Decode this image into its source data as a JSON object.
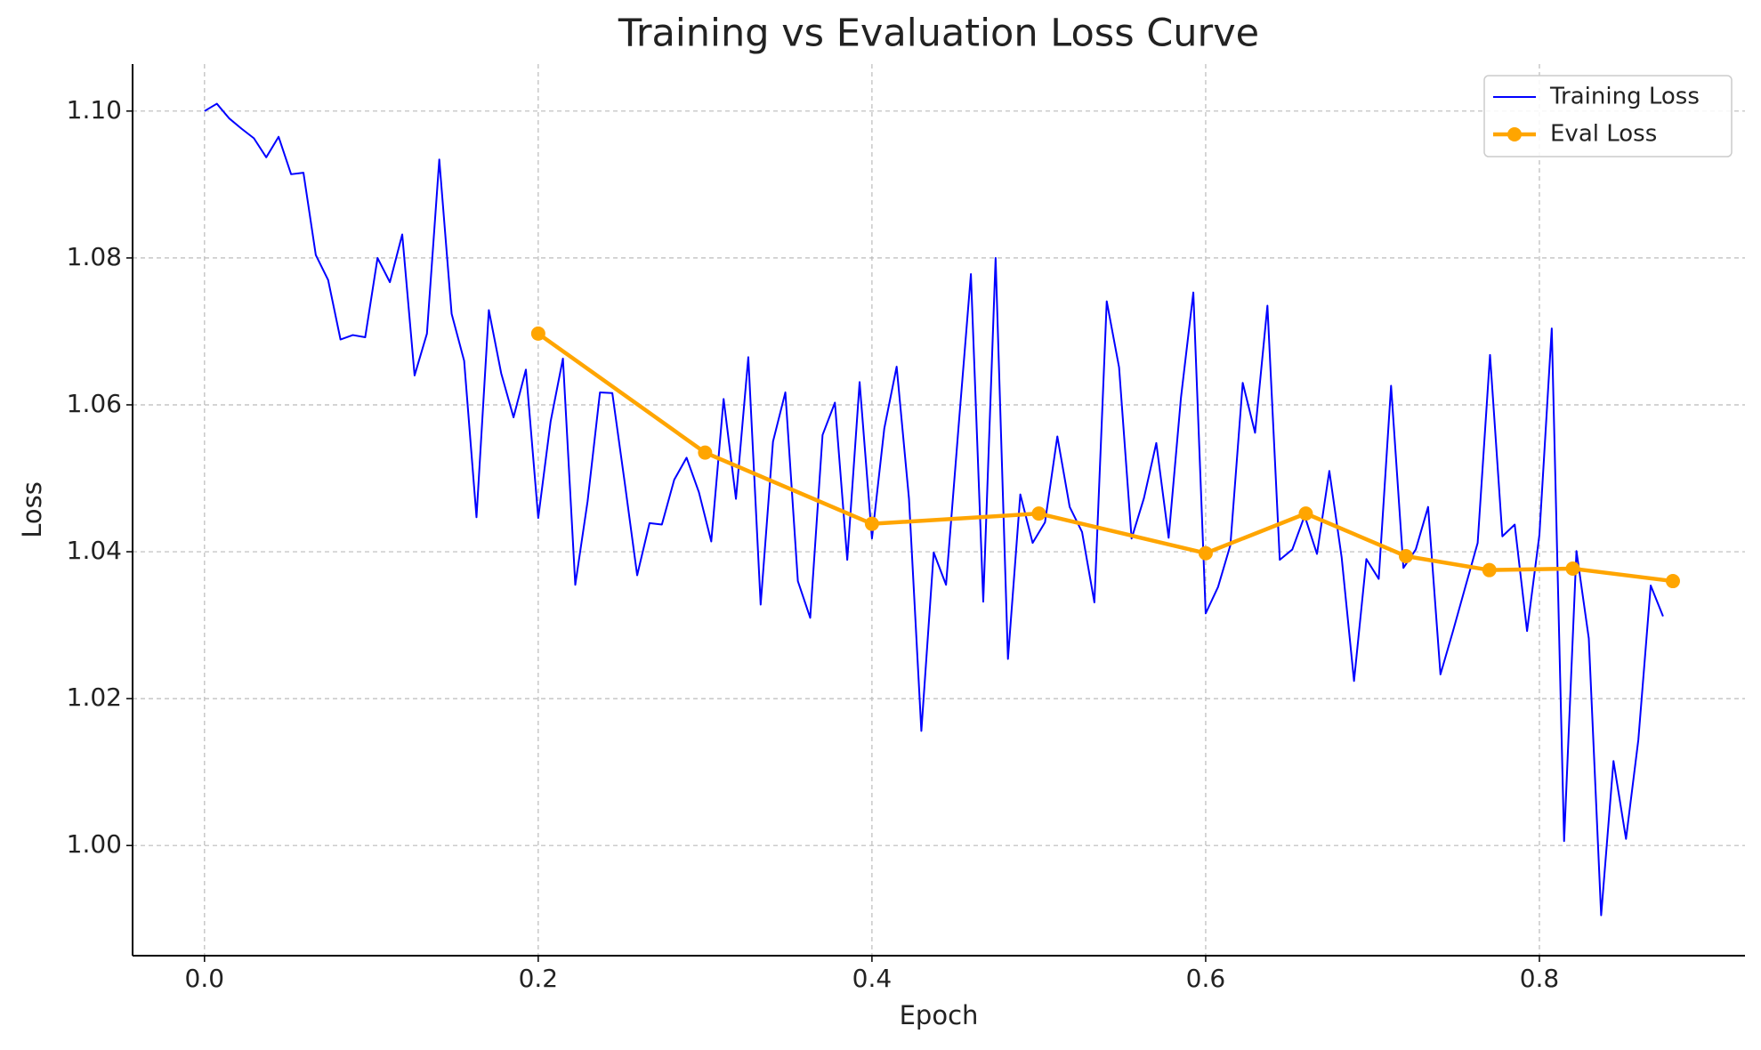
{
  "chart_data": {
    "type": "line",
    "title": "Training vs Evaluation Loss Curve",
    "x_label": "Epoch",
    "y_label": "Loss",
    "xlim": [
      -0.0431,
      0.9232
    ],
    "ylim": [
      0.985,
      1.1064
    ],
    "xticks": [
      {
        "value": 0,
        "label": "0.0"
      },
      0.2,
      0.4,
      0.6,
      0.8
    ],
    "yticks": [
      {
        "value": 1.0,
        "label": "1.00"
      },
      1.02,
      1.04,
      1.06,
      1.08,
      {
        "value": 1.1,
        "label": "1.10"
      }
    ],
    "grid": true,
    "legend": "upper right",
    "series": [
      {
        "name": "Training Loss",
        "color": "#0000ff",
        "marker": false,
        "x": [
          0,
          0.0074,
          0.0148,
          0.0222,
          0.0296,
          0.037,
          0.0444,
          0.0519,
          0.0593,
          0.0667,
          0.0741,
          0.0815,
          0.0889,
          0.0963,
          0.1037,
          0.1111,
          0.1185,
          0.1259,
          0.1333,
          0.1407,
          0.1481,
          0.1556,
          0.163,
          0.1704,
          0.1778,
          0.1852,
          0.1926,
          0.2,
          0.2074,
          0.2148,
          0.2222,
          0.2296,
          0.237,
          0.2444,
          0.2519,
          0.2593,
          0.2667,
          0.2741,
          0.2815,
          0.2889,
          0.2963,
          0.3037,
          0.3111,
          0.3185,
          0.3259,
          0.3333,
          0.3407,
          0.3481,
          0.3556,
          0.363,
          0.3704,
          0.3778,
          0.3852,
          0.3926,
          0.4,
          0.4074,
          0.4148,
          0.4222,
          0.4296,
          0.437,
          0.4444,
          0.4519,
          0.4593,
          0.4667,
          0.4741,
          0.4815,
          0.4889,
          0.4963,
          0.5037,
          0.5111,
          0.5185,
          0.5259,
          0.5333,
          0.5407,
          0.5481,
          0.5556,
          0.563,
          0.5704,
          0.5778,
          0.5852,
          0.5926,
          0.6,
          0.6074,
          0.6148,
          0.6222,
          0.6296,
          0.637,
          0.6444,
          0.6519,
          0.6593,
          0.6667,
          0.6741,
          0.6815,
          0.6889,
          0.6963,
          0.7037,
          0.7111,
          0.7185,
          0.7259,
          0.7333,
          0.7407,
          0.7481,
          0.7556,
          0.763,
          0.7704,
          0.7778,
          0.7852,
          0.7926,
          0.8,
          0.8074,
          0.8148,
          0.8222,
          0.8296,
          0.837,
          0.8444,
          0.8519,
          0.8593,
          0.8667,
          0.8741
        ],
        "values": [
          1.1,
          1.101,
          1.099,
          1.0976,
          1.0963,
          1.0937,
          1.0965,
          1.0914,
          1.0916,
          1.0804,
          1.077,
          1.0689,
          1.0695,
          1.0692,
          1.08,
          1.0767,
          1.0832,
          1.064,
          1.0697,
          1.0934,
          1.0724,
          1.066,
          1.0447,
          1.0729,
          1.0643,
          1.0583,
          1.0648,
          1.0446,
          1.0577,
          1.0663,
          1.0355,
          1.0469,
          1.0617,
          1.0616,
          1.0493,
          1.0368,
          1.0439,
          1.0437,
          1.0498,
          1.0528,
          1.0481,
          1.0414,
          1.0608,
          1.0472,
          1.0665,
          1.0328,
          1.055,
          1.0617,
          1.036,
          1.031,
          1.0559,
          1.0603,
          1.0389,
          1.0631,
          1.0418,
          1.0568,
          1.0652,
          1.0472,
          1.0156,
          1.0399,
          1.0355,
          1.057,
          1.0778,
          1.0332,
          1.08,
          1.0254,
          1.0478,
          1.0412,
          1.044,
          1.0557,
          1.0461,
          1.0427,
          1.0331,
          1.0741,
          1.0651,
          1.0418,
          1.0473,
          1.0548,
          1.0419,
          1.061,
          1.0753,
          1.0316,
          1.0352,
          1.0409,
          1.063,
          1.0562,
          1.0735,
          1.0389,
          1.0403,
          1.0449,
          1.0397,
          1.051,
          1.0392,
          1.0224,
          1.039,
          1.0363,
          1.0626,
          1.0378,
          1.0403,
          1.0461,
          1.0233,
          1.0291,
          1.0352,
          1.0412,
          1.0668,
          1.0421,
          1.0437,
          1.0292,
          1.0423,
          1.0704,
          1.0006,
          1.0401,
          1.0282,
          0.9905,
          1.0115,
          1.0009,
          1.0144,
          1.0354,
          1.0312
        ]
      },
      {
        "name": "Eval Loss",
        "color": "#ffa500",
        "marker": true,
        "x": [
          0.2,
          0.3,
          0.4,
          0.5,
          0.6,
          0.66,
          0.72,
          0.77,
          0.82,
          0.88
        ],
        "values": [
          1.0697,
          1.0535,
          1.0438,
          1.0452,
          1.0398,
          1.0452,
          1.0394,
          1.0375,
          1.0377,
          1.036
        ]
      }
    ]
  }
}
